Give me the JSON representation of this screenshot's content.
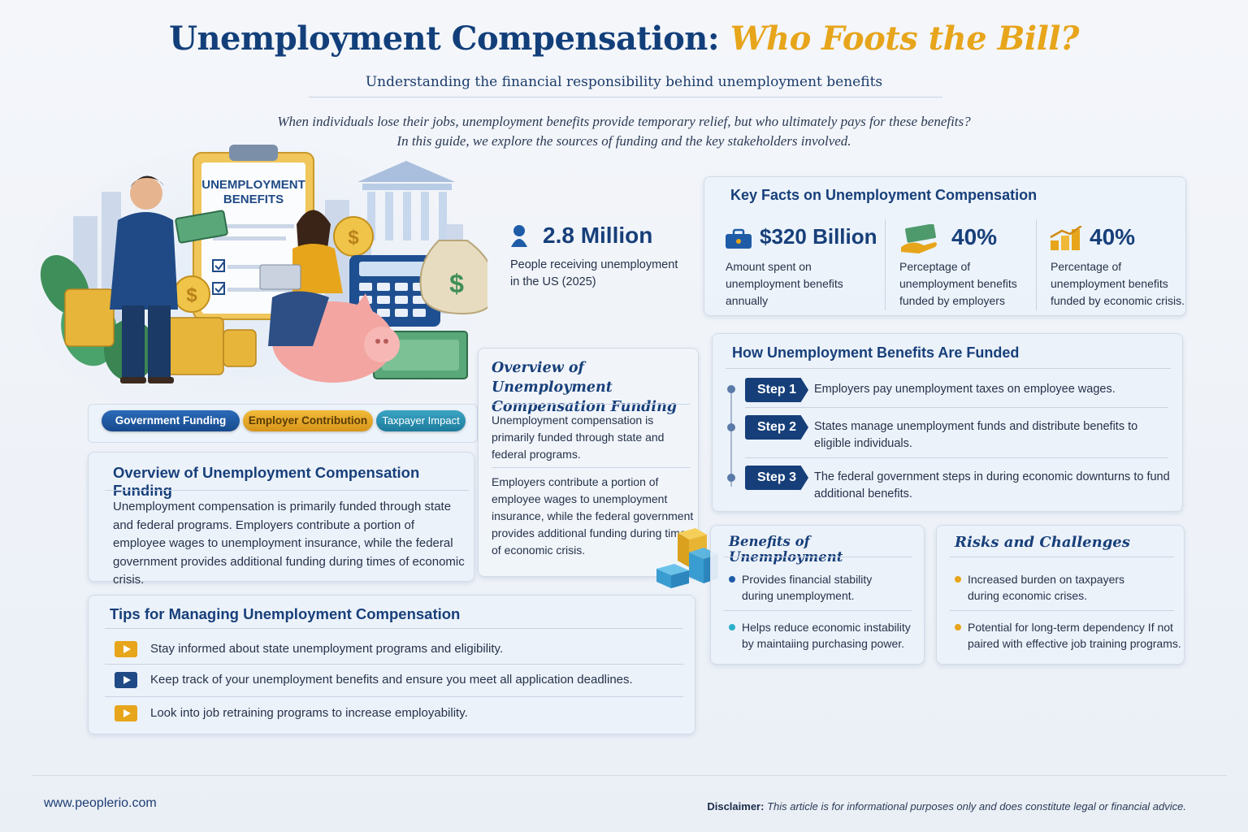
{
  "header": {
    "title_part1": "Unemployment Compensation:",
    "title_part2": "Who Foots the Bill?",
    "subtitle": "Understanding the financial responsibility behind unemployment benefits",
    "intro_line1": "When individuals lose their jobs, unemployment benefits provide temporary relief, but who ultimately pays for these benefits?",
    "intro_line2": "In this guide, we explore the sources of funding and the key stakeholders involved."
  },
  "hero": {
    "clipboard_line1": "UNEMPLOYMENT",
    "clipboard_line2": "BENEFITS",
    "dollar_sign": "$"
  },
  "stat_main": {
    "value": "2.8 Million",
    "description": "People receiving unemployment in the US (2025)"
  },
  "key_facts": {
    "title": "Key Facts on Unemployment Compensation",
    "items": [
      {
        "value": "$320 Billion",
        "description": "Amount spent on unemployment benefits annually",
        "icon": "briefcase-icon"
      },
      {
        "value": "40%",
        "description": "Perceptage of unemployment benefits funded by employers",
        "icon": "money-hand-icon"
      },
      {
        "value": "40%",
        "description": "Percentage of unemployment benefits funded by economic crisis.",
        "icon": "bar-growth-icon"
      }
    ]
  },
  "chips": {
    "government": "Government Funding",
    "employer": "Employer Contribution",
    "taxpayer": "Taxpayer Impact"
  },
  "overview_small": {
    "title": "Overview of Unemployment Compensation Funding",
    "para1": "Unemployment compensation is primarily funded through state and federal programs.",
    "para2": "Employers contribute a portion of employee wages to unemployment insurance, while the federal government provides additional funding during times of economic crisis."
  },
  "overview_large": {
    "title": "Overview of Unemployment Compensation Funding",
    "text": "Unemployment compensation is primarily funded through state and federal programs. Employers contribute a portion of employee wages to unemployment insurance, while the federal government provides additional funding during times of economic crisis."
  },
  "how_funded": {
    "title": "How Unemployment Benefits Are Funded",
    "steps": [
      {
        "label": "Step 1",
        "text": "Employers pay unemployment taxes on employee wages."
      },
      {
        "label": "Step 2",
        "text": "States manage unemployment funds and distribute benefits to eligible individuals."
      },
      {
        "label": "Step 3",
        "text": "The federal government steps in during economic downturns to fund additional benefits."
      }
    ]
  },
  "benefits": {
    "title": "Benefits of Unemployment",
    "items": [
      "Provides financial stability during unemployment.",
      "Helps reduce economic instability by maintaiing purchasing power."
    ]
  },
  "risks": {
    "title": "Risks and Challenges",
    "items": [
      "Increased burden on taxpayers during economic crises.",
      "Potential for long-term dependency If not paired with effective job training programs."
    ]
  },
  "tips": {
    "title": "Tips for Managing Unemployment Compensation",
    "items": [
      "Stay informed about state unemployment programs and eligibility.",
      "Keep track of your unemployment benefits and ensure you meet all application deadlines.",
      "Look into job retraining programs to increase employability."
    ]
  },
  "footer": {
    "site": "www.peoplerio.com",
    "disclaimer_label": "Disclaimer:",
    "disclaimer_text": "This article is for informational purposes only and does constitute legal or financial advice."
  },
  "colors": {
    "navy": "#173f7a",
    "gold": "#e7a51b",
    "teal": "#2a8fb0",
    "blue_chip": "#1f5ca8"
  }
}
